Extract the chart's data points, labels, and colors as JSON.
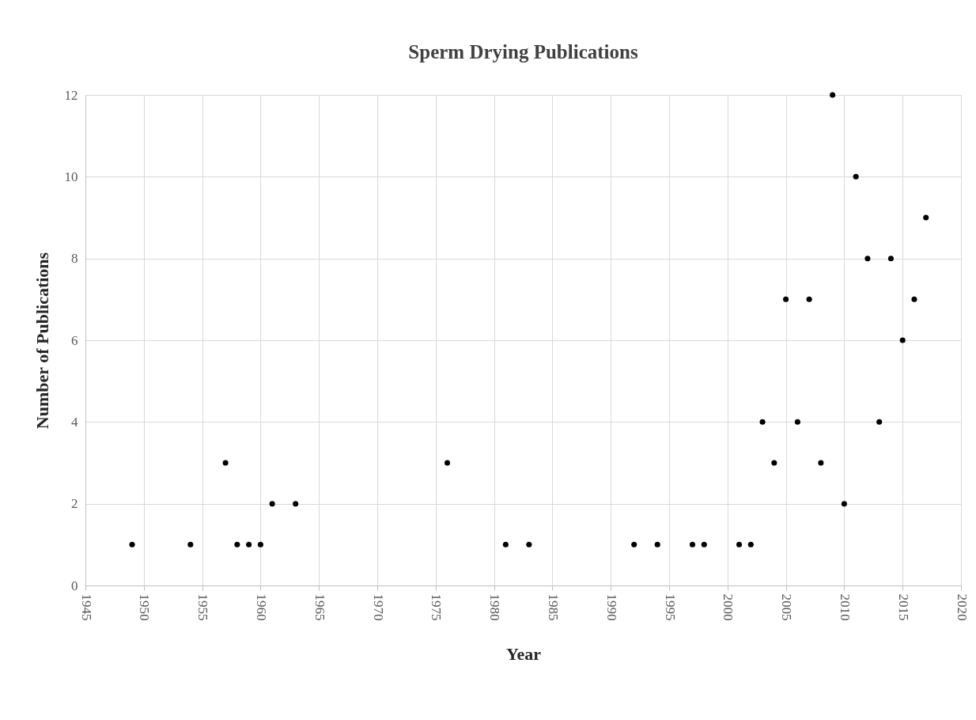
{
  "chart_data": {
    "type": "scatter",
    "title": "Sperm Drying Publications",
    "xlabel": "Year",
    "ylabel": "Number of Publications",
    "x": [
      1949,
      1954,
      1957,
      1958,
      1959,
      1960,
      1961,
      1963,
      1976,
      1981,
      1983,
      1992,
      1994,
      1997,
      1998,
      2001,
      2002,
      2003,
      2004,
      2005,
      2006,
      2007,
      2008,
      2009,
      2010,
      2011,
      2012,
      2013,
      2014,
      2015,
      2016,
      2017
    ],
    "series": [
      {
        "color": "#000000",
        "values": [
          1,
          1,
          3,
          1,
          1,
          1,
          2,
          2,
          3,
          1,
          1,
          1,
          1,
          1,
          1,
          1,
          1,
          4,
          3,
          7,
          4,
          7,
          3,
          12,
          2,
          10,
          8,
          4,
          8,
          6,
          7,
          9
        ]
      }
    ],
    "xlim": [
      1945,
      2020
    ],
    "xticks": [
      1945,
      1950,
      1955,
      1960,
      1965,
      1970,
      1975,
      1980,
      1985,
      1990,
      1995,
      2000,
      2005,
      2010,
      2015,
      2020
    ],
    "ylim": [
      0,
      12
    ],
    "yticks": [
      0,
      2,
      4,
      6,
      8,
      10,
      12
    ],
    "grid": true,
    "marker": "circle"
  }
}
